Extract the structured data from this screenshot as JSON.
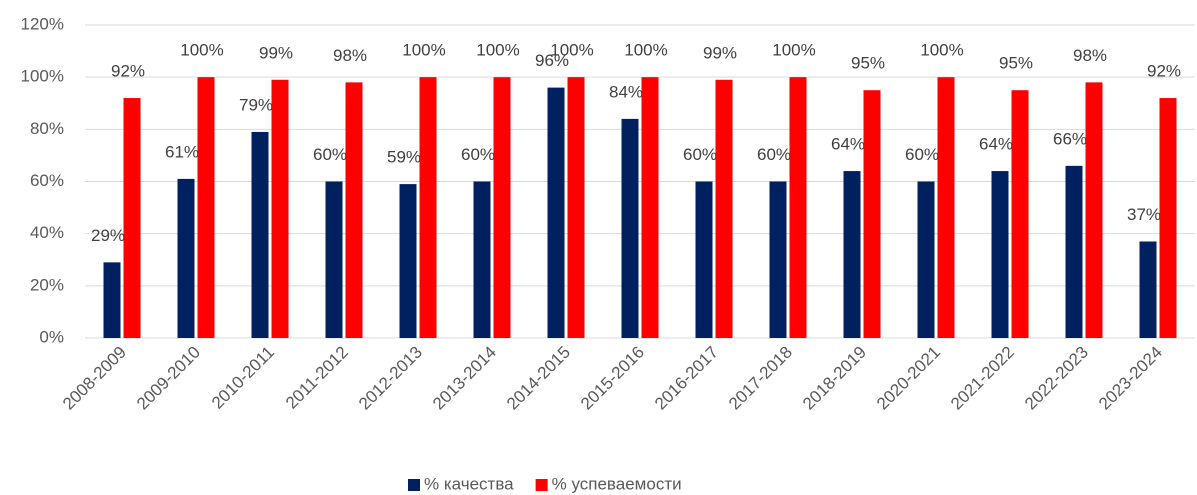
{
  "chart_data": {
    "type": "bar",
    "categories": [
      "2008-2009",
      "2009-2010",
      "2010-2011",
      "2011-2012",
      "2012-2013",
      "2013-2014",
      "2014-2015",
      "2015-2016",
      "2016-2017",
      "2017-2018",
      "2018-2019",
      "2020-2021",
      "2021-2022",
      "2022-2023",
      "2023-2024"
    ],
    "series": [
      {
        "name": "% качества",
        "color": "#002060",
        "values": [
          29,
          61,
          79,
          60,
          59,
          60,
          96,
          84,
          60,
          60,
          64,
          60,
          64,
          66,
          37
        ],
        "value_labels": [
          "29%",
          "61%",
          "79%",
          "60%",
          "59%",
          "60%",
          "96%",
          "84%",
          "60%",
          "60%",
          "64%",
          "60%",
          "64%",
          "66%",
          "37%"
        ]
      },
      {
        "name": "% успеваемости",
        "color": "#ff0000",
        "values": [
          92,
          100,
          99,
          98,
          100,
          100,
          100,
          100,
          99,
          100,
          95,
          100,
          95,
          98,
          92
        ],
        "value_labels": [
          "92%",
          "100%",
          "99%",
          "98%",
          "100%",
          "100%",
          "100%",
          "100%",
          "99%",
          "100%",
          "95%",
          "100%",
          "95%",
          "98%",
          "92%"
        ]
      }
    ],
    "ylim": [
      0,
      120
    ],
    "yticks": [
      {
        "value": 0,
        "label": "0%"
      },
      {
        "value": 20,
        "label": "20%"
      },
      {
        "value": 40,
        "label": "40%"
      },
      {
        "value": 60,
        "label": "60%"
      },
      {
        "value": 80,
        "label": "80%"
      },
      {
        "value": 100,
        "label": "100%"
      },
      {
        "value": 120,
        "label": "120%"
      }
    ],
    "grid": true,
    "legend": "bottom"
  }
}
